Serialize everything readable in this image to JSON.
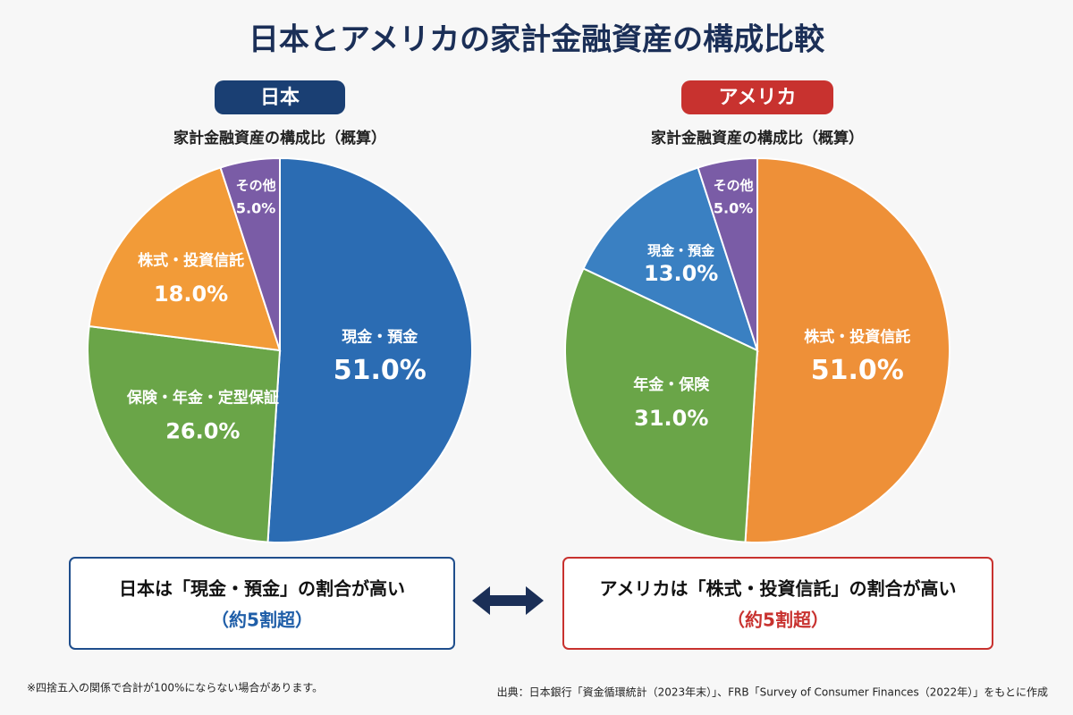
{
  "title": "日本とアメリカの家計金融資産の構成比較",
  "chart_data": [
    {
      "type": "pie",
      "label": "日本",
      "subtitle": "家計金融資産の構成比（概算）",
      "categories": [
        "現金・預金",
        "保険・年金・定型保証",
        "株式・投資信託",
        "その他"
      ],
      "values": [
        51,
        26,
        18,
        5
      ],
      "value_labels": [
        "51.0%",
        "26.0%",
        "18.0%",
        "5.0%"
      ],
      "colors": [
        "#2b6cb3",
        "#6aa548",
        "#f29b38",
        "#7a5ca6"
      ]
    },
    {
      "type": "pie",
      "label": "アメリカ",
      "subtitle": "家計金融資産の構成比（概算）",
      "categories": [
        "株式・投資信託",
        "年金・保険",
        "現金・預金",
        "その他"
      ],
      "values": [
        51,
        31,
        13,
        5
      ],
      "value_labels": [
        "51.0%",
        "31.0%",
        "13.0%",
        "5.0%"
      ],
      "colors": [
        "#ee9038",
        "#6aa548",
        "#3a80c2",
        "#7a5ca6"
      ]
    }
  ],
  "callouts": [
    {
      "text": "日本は「現金・預金」の割合が高い",
      "note": "（約5割超）"
    },
    {
      "text": "アメリカは「株式・投資信託」の割合が高い",
      "note": "（約5割超）"
    }
  ],
  "footnote": "※四捨五入の関係で合計が100%にならない場合があります。",
  "source": "出典：日本銀行「資金循環統計（2023年末）」、FRB「Survey of Consumer Finances（2022年）」をもとに作成"
}
